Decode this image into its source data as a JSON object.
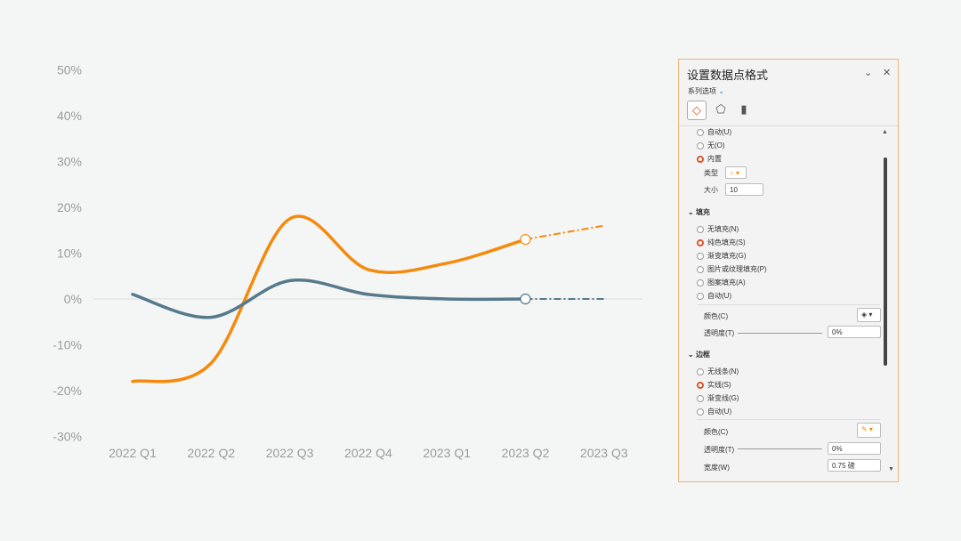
{
  "chart_data": {
    "type": "line",
    "categories": [
      "2022 Q1",
      "2022 Q2",
      "2022 Q3",
      "2022 Q4",
      "2023 Q1",
      "2023 Q2",
      "2023 Q3"
    ],
    "yticks": [
      "50%",
      "40%",
      "30%",
      "20%",
      "10%",
      "0%",
      "-10%",
      "-20%",
      "-30%"
    ],
    "ylim": [
      -30,
      50
    ],
    "grid": false,
    "series": [
      {
        "color": "#f58a0c",
        "values": [
          -18,
          -14,
          17.5,
          6.4,
          7.8,
          13,
          16
        ],
        "forecast_from": "2023 Q2",
        "marker_at": "2023 Q2"
      },
      {
        "color": "#567a8c",
        "values": [
          1,
          -4,
          4,
          1,
          0,
          0,
          0
        ],
        "forecast_from": "2023 Q2",
        "marker_at": "2023 Q2"
      }
    ]
  },
  "panel": {
    "title": "设置数据点格式",
    "series_label": "系列选项",
    "marker_options": [
      "自动(U)",
      "无(O)",
      "内置"
    ],
    "type_label": "类型",
    "size_label": "大小",
    "size_value": "10",
    "fill_header": "填充",
    "fill_options": [
      "无填充(N)",
      "纯色填充(S)",
      "渐变填充(G)",
      "图片或纹理填充(P)",
      "图案填充(A)",
      "自动(U)"
    ],
    "color_label": "颜色(C)",
    "transparency_label": "透明度(T)",
    "transparency_value": "0%",
    "border_header": "边框",
    "border_options": [
      "无线条(N)",
      "实线(S)",
      "渐变线(G)",
      "自动(U)"
    ],
    "border_color_label": "颜色(C)",
    "border_transparency_label": "透明度(T)",
    "border_transparency_value": "0%",
    "width_label": "宽度(W)",
    "width_value": "0.75 磅",
    "accent": "#d9542a"
  }
}
